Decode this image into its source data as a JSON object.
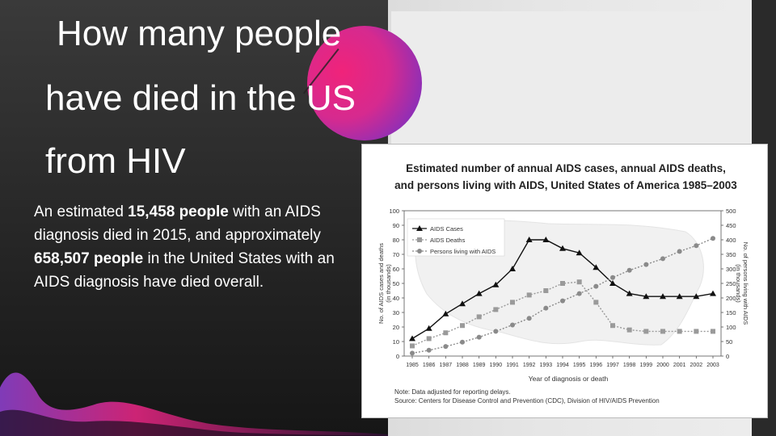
{
  "slide": {
    "title_lines": [
      "How many people",
      "have died in the US",
      "from HIV"
    ],
    "body": {
      "p1": "An estimated ",
      "b1": "15,458 people",
      "p2": " with an AIDS diagnosis died in 2015, and approximately ",
      "b2": "658,507 people",
      "p3": " in the United States with an AIDS diagnosis have died overall."
    },
    "colors": {
      "accent_pink": "#f0237a",
      "accent_purple": "#6b32c4",
      "panel_dark": "#262626"
    }
  },
  "chart_data": {
    "type": "line",
    "title_lines": [
      "Estimated number of annual AIDS cases, annual AIDS deaths,",
      "and persons living with AIDS, United States of America 1985–2003"
    ],
    "xlabel": "Year of diagnosis or death",
    "ylabel_left": [
      "No. of AIDS cases and deaths",
      "(in thousands)"
    ],
    "ylabel_right": [
      "No. of persons living with AIDS",
      "(in thousands)"
    ],
    "categories": [
      "1985",
      "1986",
      "1987",
      "1988",
      "1989",
      "1990",
      "1991",
      "1992",
      "1993",
      "1994",
      "1995",
      "1996",
      "1997",
      "1998",
      "1999",
      "2000",
      "2001",
      "2002",
      "2003"
    ],
    "ylim_left": [
      0,
      100
    ],
    "ylim_right": [
      0,
      500
    ],
    "yticks_left": [
      0,
      10,
      20,
      30,
      40,
      50,
      60,
      70,
      80,
      90,
      100
    ],
    "yticks_right": [
      0,
      50,
      100,
      150,
      200,
      250,
      300,
      350,
      400,
      450,
      500
    ],
    "series": [
      {
        "name": "AIDS Cases",
        "axis": "left",
        "marker": "triangle",
        "style": "solid",
        "values": [
          12,
          19,
          29,
          36,
          43,
          49,
          60,
          80,
          80,
          74,
          71,
          61,
          50,
          43,
          41,
          41,
          41,
          41,
          43
        ]
      },
      {
        "name": "AIDS Deaths",
        "axis": "left",
        "marker": "square",
        "style": "dotted",
        "values": [
          7,
          12,
          16,
          21,
          27,
          32,
          37,
          42,
          45,
          50,
          51,
          37,
          21,
          18,
          17,
          17,
          17,
          17,
          17
        ]
      },
      {
        "name": "Persons living with AIDS",
        "axis": "right",
        "marker": "circle",
        "style": "dotted",
        "values": [
          10,
          20,
          33,
          48,
          65,
          85,
          107,
          130,
          165,
          190,
          215,
          240,
          270,
          295,
          315,
          335,
          360,
          380,
          405
        ]
      }
    ],
    "legend_position": "top-left",
    "grid": false,
    "notes": [
      "Note: Data adjusted for reporting delays.",
      "Source: Centers for Disease Control and Prevention (CDC), Division of HIV/AIDS Prevention"
    ]
  }
}
